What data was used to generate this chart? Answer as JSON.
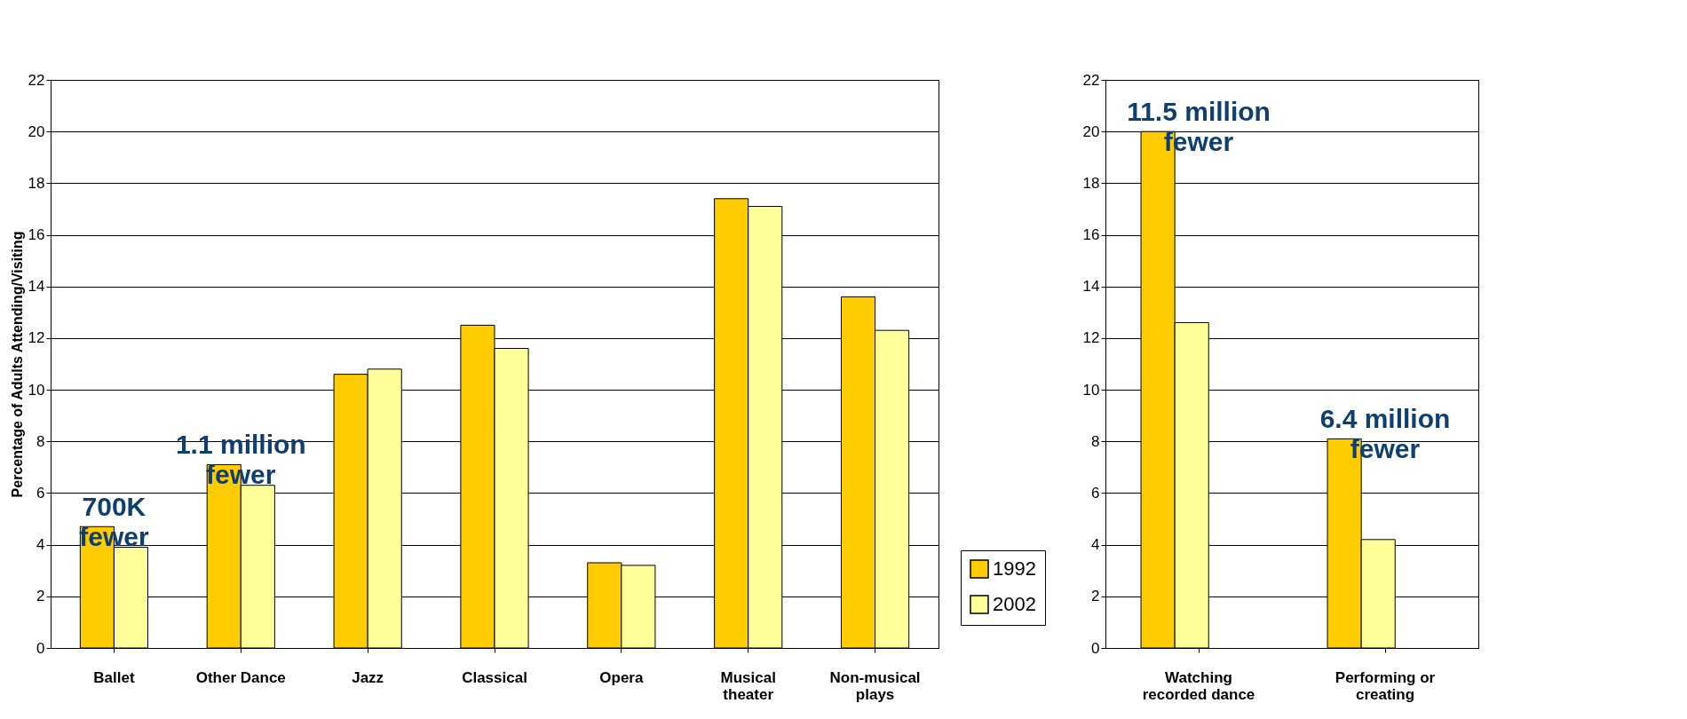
{
  "chart_data": [
    {
      "type": "bar",
      "ylabel": "Percentage of Adults Attending/Visiting",
      "categories": [
        "Ballet",
        "Other Dance",
        "Jazz",
        "Classical",
        "Opera",
        "Musical\ntheater",
        "Non-musical\nplays"
      ],
      "series": [
        {
          "name": "1992",
          "color": "#ffcc00",
          "values": [
            4.7,
            7.1,
            10.6,
            12.5,
            3.3,
            17.4,
            13.6
          ]
        },
        {
          "name": "2002",
          "color": "#ffff99",
          "values": [
            3.9,
            6.3,
            10.8,
            11.6,
            3.2,
            17.1,
            12.3
          ]
        }
      ],
      "ylim": [
        0,
        22
      ],
      "yticks": [
        0,
        2,
        4,
        6,
        8,
        10,
        12,
        14,
        16,
        18,
        20,
        22
      ],
      "grid": "y",
      "legend": "bottom right",
      "annotations": [
        "700K\nfewer",
        "1.1 million\nfewer"
      ]
    },
    {
      "type": "bar",
      "categories": [
        "Watching\nrecorded dance",
        "Performing or\ncreating"
      ],
      "series": [
        {
          "name": "1992",
          "color": "#ffcc00",
          "values": [
            20.0,
            8.1
          ]
        },
        {
          "name": "2002",
          "color": "#ffff99",
          "values": [
            12.6,
            4.2
          ]
        }
      ],
      "ylim": [
        0,
        22
      ],
      "yticks": [
        0,
        2,
        4,
        6,
        8,
        10,
        12,
        14,
        16,
        18,
        20,
        22
      ],
      "grid": "y",
      "annotations": [
        "11.5 million\nfewer",
        "6.4 million\nfewer"
      ]
    }
  ]
}
